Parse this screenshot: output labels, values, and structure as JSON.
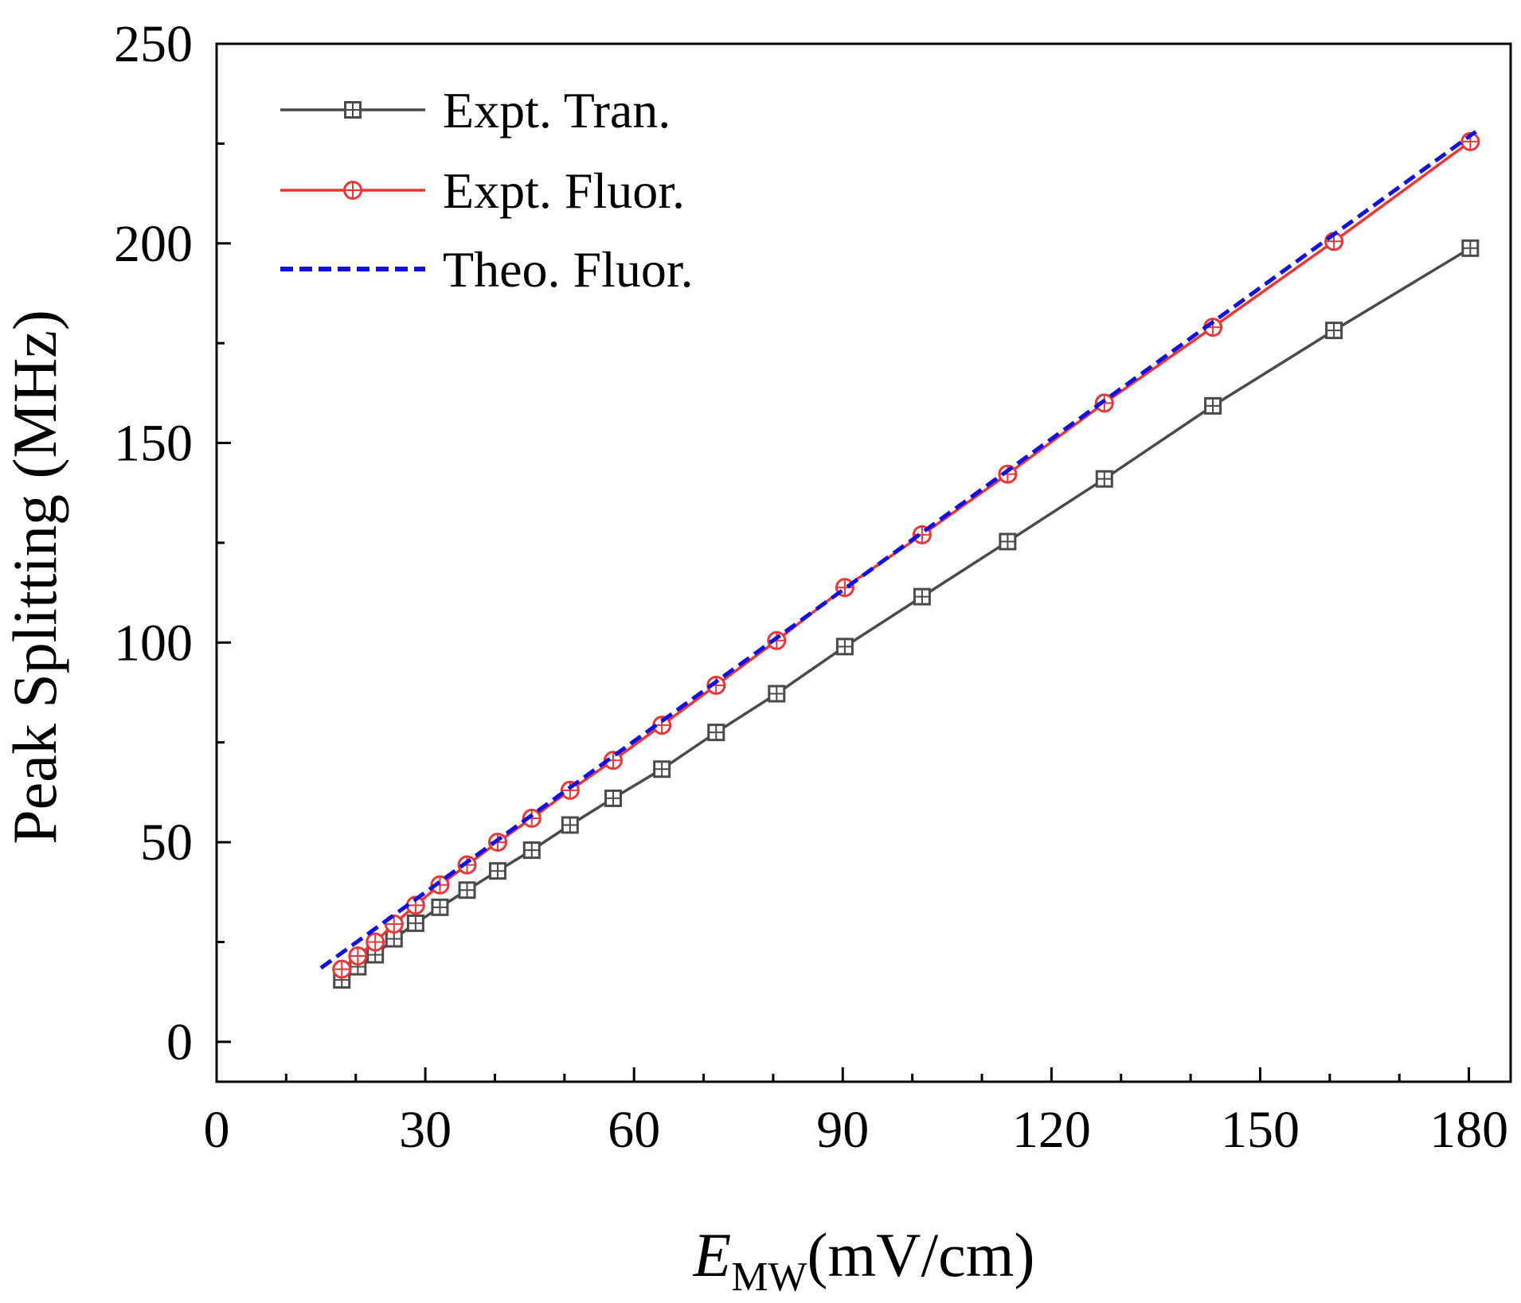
{
  "colors": {
    "expt_tran": "#4a4a4a",
    "expt_fluor": "#ec3636",
    "theo_fluor": "#1010e6"
  },
  "chart_data": {
    "type": "line",
    "title": "",
    "xlabel_main": "E",
    "xlabel_sub": "MW",
    "xlabel_unit": "(mV/cm)",
    "ylabel": "Peak Splitting (MHz)",
    "xlim": [
      0,
      186
    ],
    "ylim": [
      -10,
      250
    ],
    "x_ticks": [
      0,
      30,
      60,
      90,
      120,
      150,
      180
    ],
    "x_tick_labels": [
      "0",
      "30",
      "60",
      "90",
      "120",
      "150",
      "180"
    ],
    "y_ticks": [
      0,
      50,
      100,
      150,
      200,
      250
    ],
    "y_tick_labels": [
      "0",
      "50",
      "100",
      "150",
      "200",
      "250"
    ],
    "x_minor_ticks": [
      10,
      20,
      40,
      50,
      70,
      80,
      100,
      110,
      130,
      140,
      160,
      170
    ],
    "y_minor_ticks": [
      25,
      75,
      125,
      175,
      225
    ],
    "legend_position": "top-left",
    "series": [
      {
        "name": "Expt. Tran.",
        "color": "#4a4a4a",
        "style": "solid",
        "marker": "square",
        "x": [
          18,
          20.3,
          22.8,
          25.5,
          28.6,
          32.1,
          36,
          40.4,
          45.3,
          50.8,
          57,
          64,
          71.8,
          80.5,
          90.3,
          101.4,
          113.7,
          127.6,
          143.2,
          160.6,
          180.2
        ],
        "y": [
          15.5,
          18.8,
          21.8,
          25.8,
          29.7,
          33.7,
          38,
          42.8,
          48,
          54.3,
          61,
          68.3,
          77.5,
          87.2,
          99,
          111.5,
          125.3,
          141,
          159.3,
          178.2,
          198.8
        ]
      },
      {
        "name": "Expt. Fluor.",
        "color": "#ec3636",
        "style": "solid",
        "marker": "circle",
        "x": [
          18,
          20.3,
          22.8,
          25.5,
          28.6,
          32.1,
          36,
          40.4,
          45.3,
          50.8,
          57,
          64,
          71.8,
          80.5,
          90.3,
          101.4,
          113.7,
          127.6,
          143.2,
          160.6,
          180.2
        ],
        "y": [
          18.2,
          21.5,
          25,
          29.5,
          34.2,
          39.3,
          44.3,
          50,
          56,
          63,
          70.5,
          79.3,
          89.3,
          100.5,
          113.8,
          127,
          142.2,
          160,
          179,
          200.5,
          225.5
        ]
      },
      {
        "name": "Theo. Fluor.",
        "color": "#1010e6",
        "style": "dashed",
        "marker": "none",
        "x": [
          15,
          181
        ],
        "y": [
          18.5,
          228
        ]
      }
    ]
  }
}
